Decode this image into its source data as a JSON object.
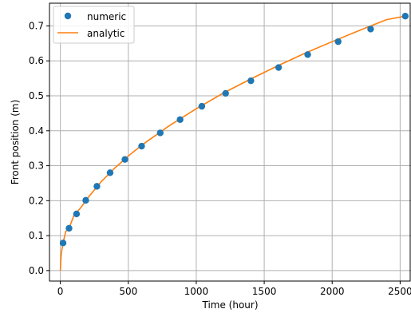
{
  "chart_data": {
    "type": "line",
    "title": "",
    "xlabel": "Time (hour)",
    "ylabel": "Front position (m)",
    "xlim": [
      -80,
      2580
    ],
    "ylim": [
      -0.03,
      0.765
    ],
    "x_ticks": [
      0,
      500,
      1000,
      1500,
      2000,
      2500
    ],
    "x_tick_labels": [
      "0",
      "500",
      "1000",
      "1500",
      "2000",
      "2500"
    ],
    "y_ticks": [
      0.0,
      0.1,
      0.2,
      0.3,
      0.4,
      0.5,
      0.6,
      0.7
    ],
    "y_tick_labels": [
      "0.0",
      "0.1",
      "0.2",
      "0.3",
      "0.4",
      "0.5",
      "0.6",
      "0.7"
    ],
    "grid": true,
    "legend_position": "top-left",
    "series": [
      {
        "name": "numeric",
        "kind": "scatter",
        "color": "#1f77b4",
        "x": [
          20,
          64,
          119,
          187,
          269,
          366,
          475,
          598,
          735,
          881,
          1041,
          1216,
          1402,
          1606,
          1820,
          2044,
          2283,
          2538
        ],
        "y": [
          0.079,
          0.121,
          0.162,
          0.201,
          0.241,
          0.28,
          0.318,
          0.356,
          0.394,
          0.432,
          0.47,
          0.507,
          0.543,
          0.581,
          0.618,
          0.655,
          0.691,
          0.728
        ]
      },
      {
        "name": "analytic",
        "kind": "line",
        "color": "#ff7f0e",
        "x": [
          0,
          5,
          10,
          20,
          40,
          64,
          100,
          150,
          200,
          300,
          400,
          500,
          600,
          800,
          1000,
          1200,
          1400,
          1600,
          1800,
          2000,
          2200,
          2400,
          2538
        ],
        "y": [
          0.0,
          0.04,
          0.056,
          0.079,
          0.112,
          0.121,
          0.158,
          0.18,
          0.207,
          0.254,
          0.293,
          0.328,
          0.359,
          0.414,
          0.463,
          0.508,
          0.548,
          0.586,
          0.622,
          0.655,
          0.687,
          0.718,
          0.728
        ]
      }
    ]
  }
}
